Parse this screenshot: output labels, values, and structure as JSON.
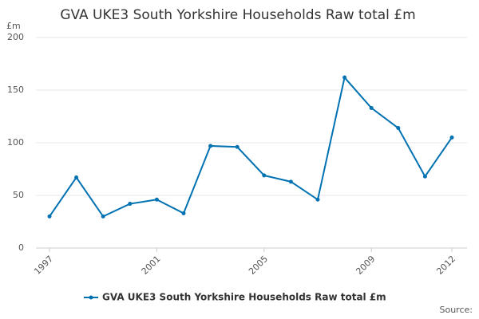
{
  "chart_data": {
    "type": "line",
    "title": "GVA UKE3 South Yorkshire Households Raw total £m",
    "y_label": "£m",
    "x": [
      1997,
      1998,
      1999,
      2000,
      2001,
      2002,
      2003,
      2004,
      2005,
      2006,
      2007,
      2008,
      2009,
      2010,
      2011,
      2012
    ],
    "series": [
      {
        "name": "GVA UKE3 South Yorkshire Households Raw total £m",
        "color": "#0072b2",
        "values": [
          30,
          67,
          30,
          42,
          46,
          33,
          97,
          96,
          69,
          63,
          46,
          162,
          133,
          114,
          68,
          105
        ]
      }
    ],
    "xlim": [
      1997,
      2012
    ],
    "xticks": [
      1997,
      2001,
      2005,
      2009,
      2012
    ],
    "ylim": [
      0,
      200
    ],
    "yticks": [
      0,
      50,
      100,
      150,
      200
    ],
    "grid": true,
    "source": "Source:"
  }
}
